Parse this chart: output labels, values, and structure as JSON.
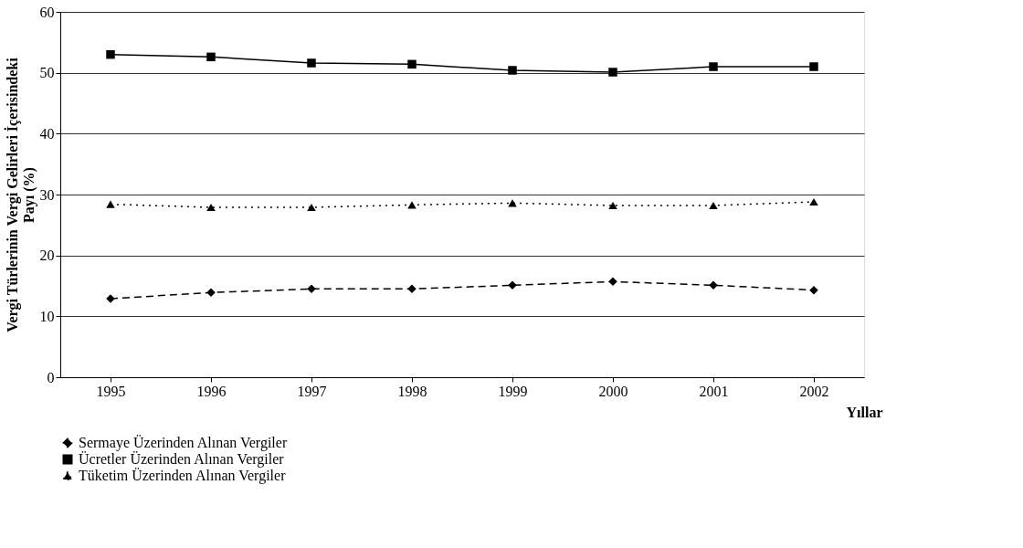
{
  "chart_data": {
    "type": "line",
    "xlabel": "Yıllar",
    "ylabel": "Vergi Türlerinin Vergi Gelirleri İçerisindeki Payı (%)",
    "categories": [
      "1995",
      "1996",
      "1997",
      "1998",
      "1999",
      "2000",
      "2001",
      "2002"
    ],
    "series": [
      {
        "name": "Sermaye Üzerinden Alınan Vergiler",
        "color": "#000000",
        "marker": "diamond",
        "line_style": "dashed",
        "values": [
          12.9,
          13.9,
          14.5,
          14.5,
          15.1,
          15.7,
          15.1,
          14.3
        ]
      },
      {
        "name": "Ücretler Üzerinden Alınan Vergiler",
        "color": "#000000",
        "marker": "square",
        "line_style": "solid",
        "values": [
          53.0,
          52.6,
          51.6,
          51.4,
          50.4,
          50.1,
          51.0,
          51.0
        ]
      },
      {
        "name": "Tüketim Üzerinden Alınan Vergiler",
        "color": "#000000",
        "marker": "triangle",
        "line_style": "dotted",
        "values": [
          28.4,
          27.9,
          27.9,
          28.3,
          28.6,
          28.2,
          28.2,
          28.8
        ]
      }
    ],
    "ylim": [
      0,
      60
    ],
    "yticks": [
      0,
      10,
      20,
      30,
      40,
      50,
      60
    ],
    "grid": "y",
    "legend": "bottom"
  }
}
